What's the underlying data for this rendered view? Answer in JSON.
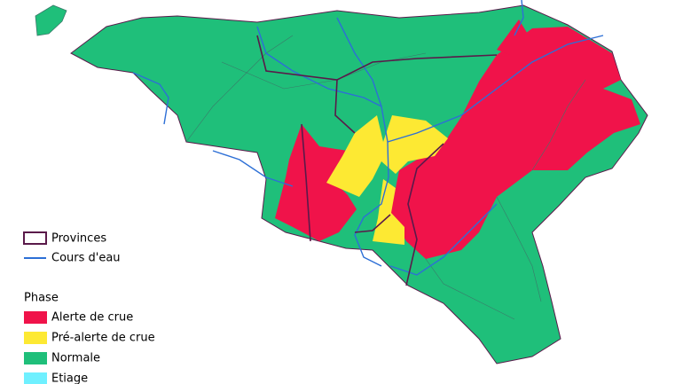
{
  "legend": {
    "provinces": "Provinces",
    "rivers": "Cours d'eau",
    "phase_title": "Phase",
    "items": [
      {
        "label": "Alerte de crue",
        "color": "#f0134a"
      },
      {
        "label": "Pré-alerte de crue",
        "color": "#fde933"
      },
      {
        "label": "Normale",
        "color": "#1fbf7a"
      },
      {
        "label": "Etiage",
        "color": "#6ff0ff"
      }
    ]
  }
}
